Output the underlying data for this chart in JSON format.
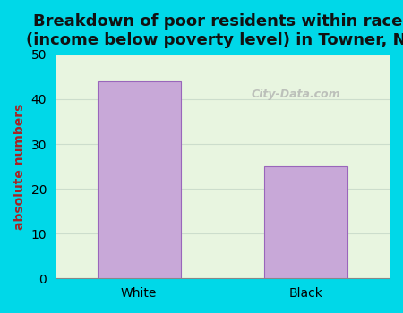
{
  "categories": [
    "White",
    "Black"
  ],
  "values": [
    44,
    25
  ],
  "bar_color": "#c8a8d8",
  "bar_edgecolor": "#9966bb",
  "title": "Breakdown of poor residents within races\n(income below poverty level) in Towner, ND",
  "ylabel": "absolute numbers",
  "ylim": [
    0,
    50
  ],
  "yticks": [
    0,
    10,
    20,
    30,
    40,
    50
  ],
  "background_outer": "#00d8e8",
  "plot_bg_top": "#e8f5e0",
  "plot_bg_bottom": "#f5fff5",
  "watermark": "City-Data.com",
  "title_fontsize": 13,
  "ylabel_fontsize": 10,
  "tick_fontsize": 10
}
